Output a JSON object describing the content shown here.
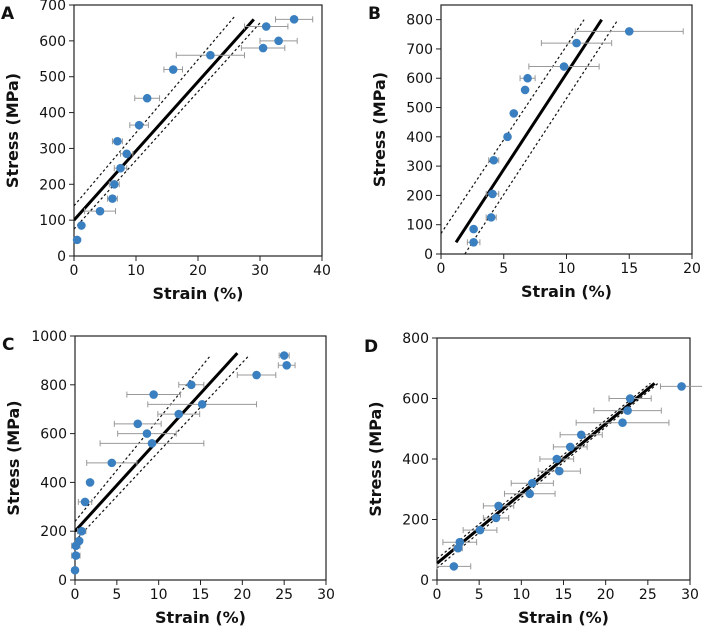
{
  "chart_data": [
    {
      "type": "scatter",
      "panel_label": "A",
      "xlabel": "Strain (%)",
      "ylabel": "Stress (MPa)",
      "xlim": [
        0,
        40
      ],
      "ylim": [
        0,
        700
      ],
      "xticks": [
        0,
        10,
        20,
        30,
        40
      ],
      "yticks": [
        0,
        100,
        200,
        300,
        400,
        500,
        600,
        700
      ],
      "points": [
        {
          "x": 0.5,
          "y": 45,
          "err": 0
        },
        {
          "x": 1.2,
          "y": 85,
          "err": 0
        },
        {
          "x": 4.2,
          "y": 125,
          "err": 2.5
        },
        {
          "x": 6.2,
          "y": 160,
          "err": 0.8
        },
        {
          "x": 6.5,
          "y": 200,
          "err": 0.8
        },
        {
          "x": 7.5,
          "y": 245,
          "err": 1.0
        },
        {
          "x": 8.5,
          "y": 285,
          "err": 1.0
        },
        {
          "x": 7.0,
          "y": 320,
          "err": 0.8
        },
        {
          "x": 10.5,
          "y": 365,
          "err": 1.5
        },
        {
          "x": 11.8,
          "y": 440,
          "err": 2.0
        },
        {
          "x": 16.0,
          "y": 520,
          "err": 1.5
        },
        {
          "x": 22.0,
          "y": 560,
          "err": 5.5
        },
        {
          "x": 30.5,
          "y": 580,
          "err": 3.5
        },
        {
          "x": 33.0,
          "y": 600,
          "err": 3.0
        },
        {
          "x": 31.0,
          "y": 640,
          "err": 3.5
        },
        {
          "x": 35.5,
          "y": 660,
          "err": 3.0
        }
      ],
      "fit_line": {
        "x": [
          0,
          29
        ],
        "y": [
          100,
          660
        ]
      },
      "ci_upper": {
        "x": [
          0,
          26
        ],
        "y": [
          140,
          670
        ]
      },
      "ci_lower": {
        "x": [
          0,
          30
        ],
        "y": [
          75,
          650
        ]
      }
    },
    {
      "type": "scatter",
      "panel_label": "B",
      "xlabel": "Strain (%)",
      "ylabel": "Stress (MPa)",
      "xlim": [
        0,
        20
      ],
      "ylim": [
        0,
        850
      ],
      "xticks": [
        0,
        5,
        10,
        15,
        20
      ],
      "yticks": [
        0,
        100,
        200,
        300,
        400,
        500,
        600,
        700,
        800
      ],
      "points": [
        {
          "x": 2.6,
          "y": 40,
          "err": 0.5
        },
        {
          "x": 2.6,
          "y": 85,
          "err": 0.2
        },
        {
          "x": 4.0,
          "y": 125,
          "err": 0.4
        },
        {
          "x": 4.1,
          "y": 205,
          "err": 0.5
        },
        {
          "x": 4.2,
          "y": 320,
          "err": 0.4
        },
        {
          "x": 5.3,
          "y": 400,
          "err": 0.2
        },
        {
          "x": 5.8,
          "y": 480,
          "err": 0.2
        },
        {
          "x": 6.7,
          "y": 560,
          "err": 0.2
        },
        {
          "x": 6.9,
          "y": 600,
          "err": 0.6
        },
        {
          "x": 9.8,
          "y": 640,
          "err": 2.8
        },
        {
          "x": 10.8,
          "y": 720,
          "err": 2.8
        },
        {
          "x": 15.0,
          "y": 760,
          "err": 4.3
        }
      ],
      "fit_line": {
        "x": [
          1.2,
          12.8
        ],
        "y": [
          40,
          800
        ]
      },
      "ci_upper": {
        "x": [
          0,
          11.4
        ],
        "y": [
          70,
          800
        ]
      },
      "ci_lower": {
        "x": [
          1.9,
          14.1
        ],
        "y": [
          0,
          800
        ]
      }
    },
    {
      "type": "scatter",
      "panel_label": "C",
      "xlabel": "Strain (%)",
      "ylabel": "Stress (MPa)",
      "xlim": [
        0,
        30
      ],
      "ylim": [
        0,
        1000
      ],
      "xticks": [
        0,
        5,
        10,
        15,
        20,
        25,
        30
      ],
      "yticks": [
        0,
        200,
        400,
        600,
        800,
        1000
      ],
      "points": [
        {
          "x": 0.0,
          "y": 40,
          "err": 0
        },
        {
          "x": 0.1,
          "y": 100,
          "err": 0.5
        },
        {
          "x": 0.1,
          "y": 140,
          "err": 0.5
        },
        {
          "x": 0.5,
          "y": 160,
          "err": 0.3
        },
        {
          "x": 0.8,
          "y": 200,
          "err": 0.5
        },
        {
          "x": 1.2,
          "y": 320,
          "err": 0.8
        },
        {
          "x": 1.8,
          "y": 400,
          "err": 0.3
        },
        {
          "x": 4.4,
          "y": 480,
          "err": 3.0
        },
        {
          "x": 9.2,
          "y": 560,
          "err": 6.2
        },
        {
          "x": 8.6,
          "y": 600,
          "err": 3.5
        },
        {
          "x": 7.5,
          "y": 640,
          "err": 2.8
        },
        {
          "x": 12.4,
          "y": 680,
          "err": 2.5
        },
        {
          "x": 15.2,
          "y": 720,
          "err": 6.5
        },
        {
          "x": 9.4,
          "y": 760,
          "err": 3.2
        },
        {
          "x": 13.9,
          "y": 800,
          "err": 1.5
        },
        {
          "x": 21.7,
          "y": 840,
          "err": 2.3
        },
        {
          "x": 25.3,
          "y": 880,
          "err": 1.0
        },
        {
          "x": 25.0,
          "y": 920,
          "err": 0.6
        }
      ],
      "fit_line": {
        "x": [
          0,
          19.4
        ],
        "y": [
          200,
          930
        ]
      },
      "ci_upper": {
        "x": [
          0,
          16.2
        ],
        "y": [
          240,
          920
        ]
      },
      "ci_lower": {
        "x": [
          0,
          20.8
        ],
        "y": [
          160,
          920
        ]
      }
    },
    {
      "type": "scatter",
      "panel_label": "D",
      "xlabel": "Strain (%)",
      "ylabel": "Stress (MPa)",
      "xlim": [
        0,
        30
      ],
      "ylim": [
        0,
        800
      ],
      "xticks": [
        0,
        5,
        10,
        15,
        20,
        25,
        30
      ],
      "yticks": [
        0,
        200,
        400,
        600,
        800
      ],
      "points": [
        {
          "x": 2.0,
          "y": 45,
          "err": 2.0
        },
        {
          "x": 2.5,
          "y": 105,
          "err": 0.5
        },
        {
          "x": 2.7,
          "y": 125,
          "err": 2.0
        },
        {
          "x": 5.1,
          "y": 165,
          "err": 2.0
        },
        {
          "x": 7.0,
          "y": 205,
          "err": 1.5
        },
        {
          "x": 7.3,
          "y": 245,
          "err": 1.8
        },
        {
          "x": 11.0,
          "y": 285,
          "err": 3.0
        },
        {
          "x": 11.3,
          "y": 320,
          "err": 2.5
        },
        {
          "x": 14.5,
          "y": 360,
          "err": 2.5
        },
        {
          "x": 14.2,
          "y": 400,
          "err": 2.0
        },
        {
          "x": 15.8,
          "y": 440,
          "err": 2.0
        },
        {
          "x": 17.1,
          "y": 480,
          "err": 2.5
        },
        {
          "x": 22.0,
          "y": 520,
          "err": 5.5
        },
        {
          "x": 22.6,
          "y": 560,
          "err": 4.0
        },
        {
          "x": 22.9,
          "y": 600,
          "err": 2.5
        },
        {
          "x": 29.0,
          "y": 640,
          "err": 2.5
        }
      ],
      "fit_line": {
        "x": [
          0,
          25.8
        ],
        "y": [
          55,
          650
        ]
      },
      "ci_upper": {
        "x": [
          0,
          25.3
        ],
        "y": [
          70,
          650
        ]
      },
      "ci_lower": {
        "x": [
          0,
          26.2
        ],
        "y": [
          40,
          650
        ]
      }
    }
  ]
}
